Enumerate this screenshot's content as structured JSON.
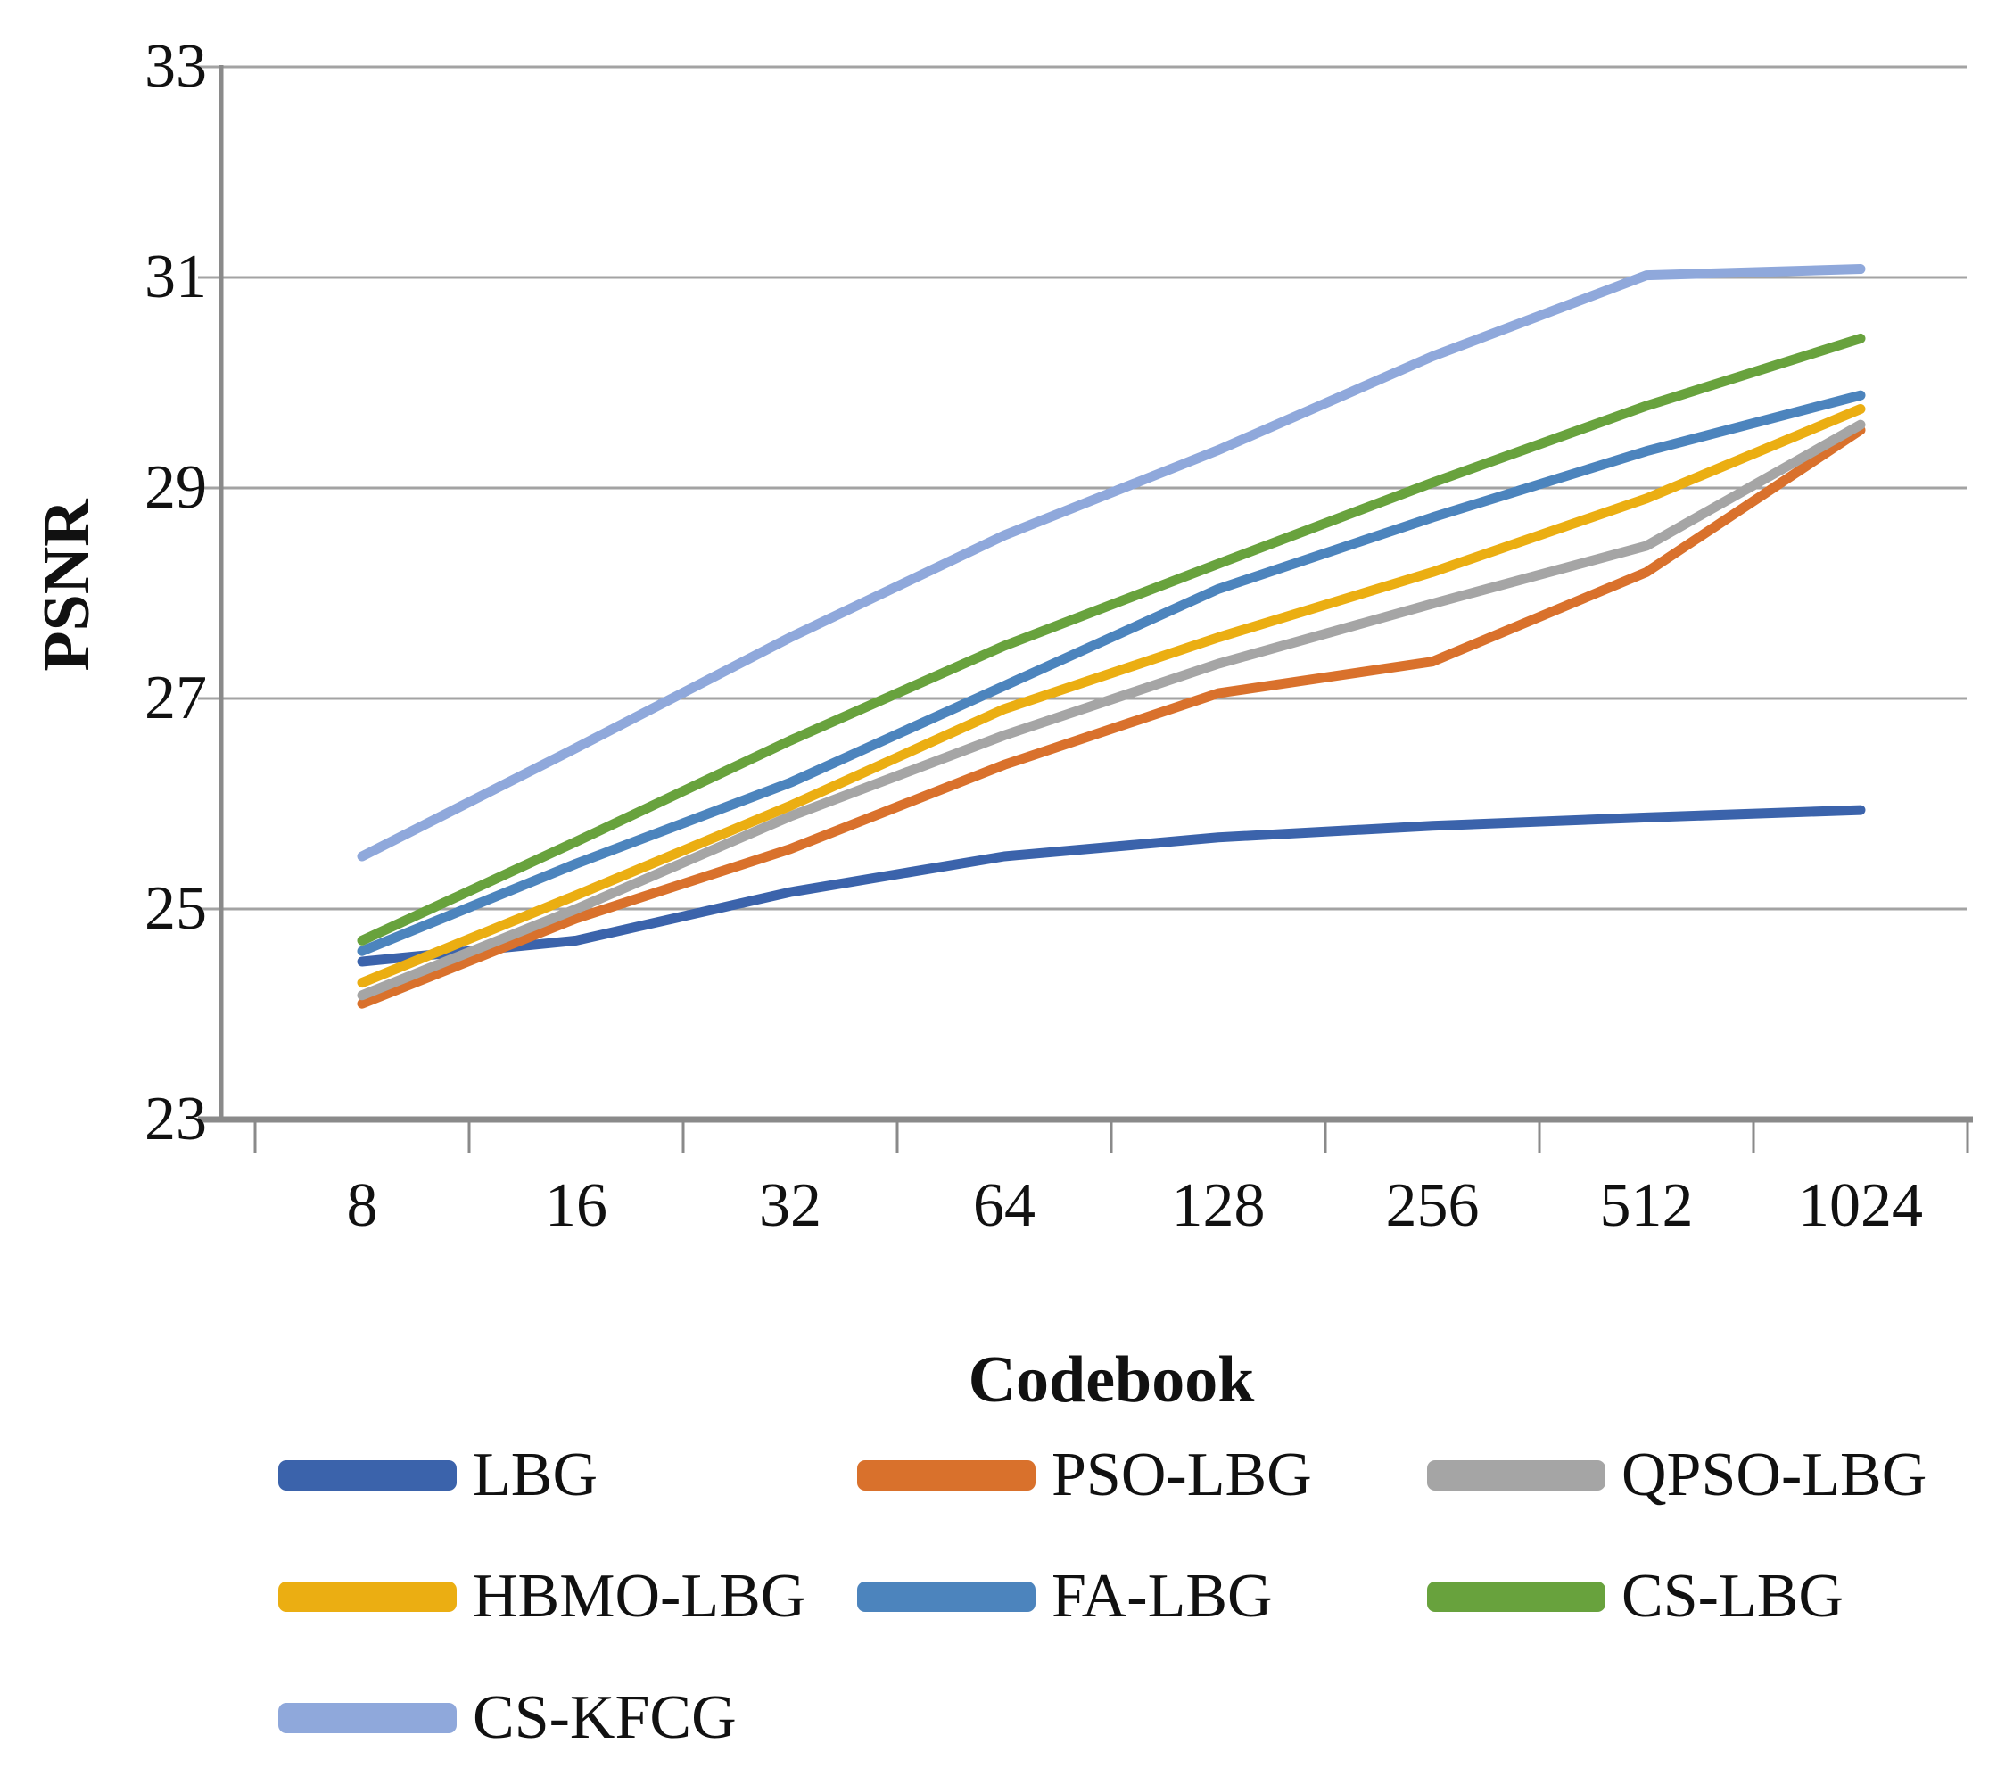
{
  "figure": {
    "y_axis_title": "PSNR",
    "x_axis_title": "Codebook",
    "y_tick_labels": [
      "33",
      "31",
      "29",
      "27",
      "25",
      "23"
    ],
    "x_tick_labels": [
      "8",
      "16",
      "32",
      "64",
      "128",
      "256",
      "512",
      "1024"
    ]
  },
  "chart_data": {
    "type": "line",
    "title": "",
    "xlabel": "Codebook",
    "ylabel": "PSNR",
    "categories": [
      8,
      16,
      32,
      64,
      128,
      256,
      512,
      1024
    ],
    "x_scale": "categorical",
    "ylim": [
      23,
      33
    ],
    "y_ticks": [
      33,
      31,
      29,
      27,
      25,
      23
    ],
    "grid": "horizontal gridlines only",
    "legend_position": "below plot, wrapped in 3 columns",
    "axis_color": "#8A8A8A",
    "gridline_color": "#A3A3A3",
    "series": [
      {
        "name": "LBG",
        "color": "#3B63AB",
        "values": [
          24.5,
          24.7,
          25.16,
          25.5,
          25.68,
          25.79,
          25.87,
          25.94
        ]
      },
      {
        "name": "PSO-LBG",
        "color": "#D9712C",
        "values": [
          24.1,
          24.91,
          25.57,
          26.37,
          27.05,
          27.35,
          28.2,
          29.55
        ]
      },
      {
        "name": "QPSO-LBG",
        "color": "#A5A5A5",
        "values": [
          24.18,
          25.0,
          25.88,
          26.65,
          27.33,
          27.9,
          28.45,
          29.6
        ]
      },
      {
        "name": "HBMO-LBG",
        "color": "#EBAE12",
        "values": [
          24.3,
          25.13,
          25.98,
          26.9,
          27.58,
          28.2,
          28.9,
          29.75
        ]
      },
      {
        "name": "FA-LBG",
        "color": "#4C84BD",
        "values": [
          24.6,
          25.43,
          26.2,
          27.12,
          28.04,
          28.72,
          29.35,
          29.88
        ]
      },
      {
        "name": "CS-LBG",
        "color": "#68A23D",
        "values": [
          24.7,
          25.64,
          26.6,
          27.5,
          28.28,
          29.05,
          29.78,
          30.42
        ]
      },
      {
        "name": "CS-KFCG",
        "color": "#8FA8DB",
        "values": [
          25.5,
          26.53,
          27.58,
          28.55,
          29.36,
          30.25,
          31.02,
          31.08
        ]
      }
    ]
  }
}
